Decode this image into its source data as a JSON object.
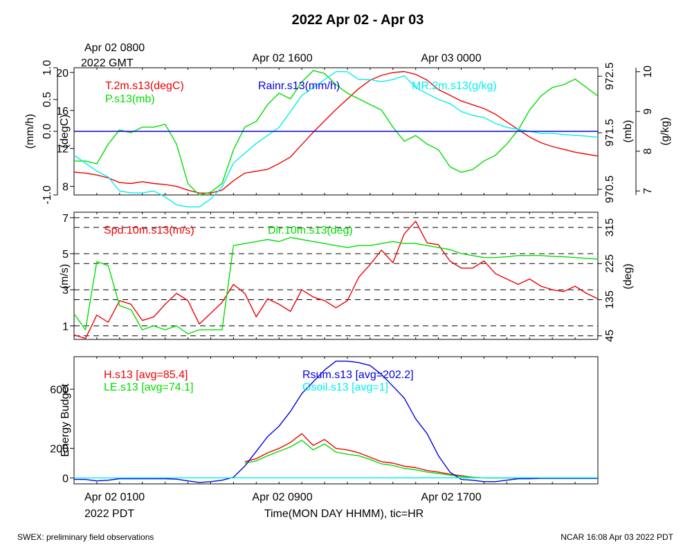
{
  "page": {
    "title": "2022 Apr 02 - Apr 03",
    "top_time_labels": {
      "first_line1": "Apr 02 0800",
      "first_line2": "2022 GMT",
      "second": "Apr 02 1600",
      "third": "Apr 03 0000"
    },
    "bottom_time_labels": {
      "first_line1": "Apr 02 0100",
      "first_line2": "2022 PDT",
      "second": "Apr 02 0900",
      "third": "Apr 02 1700"
    },
    "xlabel": "Time(MON DAY HHMM), tic=HR",
    "footer_left": "SWEX: preliminary field observations",
    "footer_right": "NCAR 16:08 Apr 03 2022 PDT"
  },
  "colors": {
    "red": "#ee0000",
    "green": "#00dd00",
    "blue": "#0000dd",
    "cyan": "#00eeee",
    "black": "#000000"
  },
  "chart_data": [
    {
      "type": "line",
      "x_hours_pdt": [
        1,
        24
      ],
      "axes": {
        "left_outer": {
          "label": "(mm/h)",
          "ylim": [
            -1.0,
            1.0
          ],
          "ticks": [
            "-1.0",
            "0.0",
            "0.5",
            "1.0"
          ]
        },
        "left_inner": {
          "label": "(degC)",
          "ylim": [
            7.1,
            20.5
          ],
          "ticks": [
            "8",
            "12",
            "16",
            "20"
          ]
        },
        "right_inner": {
          "label": "(mb)",
          "ylim": [
            970.4,
            972.65
          ],
          "ticks": [
            "970.5",
            "971.5",
            "972.5"
          ]
        },
        "right_outer": {
          "label": "(g/kg)",
          "ylim": [
            6.9,
            10.1
          ],
          "ticks": [
            "7",
            "8",
            "9",
            "10"
          ]
        }
      },
      "series": [
        {
          "name": "T.2m.s13(degC)",
          "axis": "left_inner",
          "color": "#ee0000",
          "x": [
            1,
            1.5,
            2,
            2.5,
            3,
            3.5,
            4,
            4.5,
            5,
            5.5,
            6,
            6.5,
            7,
            7.5,
            8,
            8.5,
            9,
            9.5,
            10,
            10.5,
            11,
            11.5,
            12,
            12.5,
            13,
            13.5,
            14,
            14.5,
            15,
            15.5,
            16,
            16.5,
            17,
            17.5,
            18,
            18.5,
            19,
            19.5,
            20,
            20.5,
            21,
            21.5,
            22,
            22.5,
            23,
            23.5,
            24
          ],
          "values": [
            9.5,
            9.4,
            9.2,
            8.9,
            8.4,
            8.3,
            8.5,
            8.3,
            8.2,
            8.0,
            7.6,
            7.3,
            7.3,
            7.6,
            8.6,
            9.4,
            9.6,
            9.8,
            10.4,
            11.1,
            12.4,
            13.7,
            14.9,
            16.1,
            17.2,
            18.3,
            19.2,
            19.7,
            20.0,
            20.1,
            19.8,
            19.2,
            18.2,
            17.6,
            17.0,
            16.6,
            16.2,
            15.6,
            14.8,
            14.0,
            13.2,
            12.6,
            12.2,
            11.9,
            11.6,
            11.4,
            11.2
          ]
        },
        {
          "name": "P.s13(mb)",
          "axis": "right_inner",
          "color": "#00dd00",
          "x": [
            1,
            1.5,
            2,
            2.5,
            3,
            3.5,
            4,
            4.5,
            5,
            5.5,
            6,
            6.5,
            7,
            7.5,
            8,
            8.5,
            9,
            9.5,
            10,
            10.5,
            11,
            11.5,
            12,
            12.5,
            13,
            13.5,
            14,
            14.5,
            15,
            15.5,
            16,
            16.5,
            17,
            17.5,
            18,
            18.5,
            19,
            19.5,
            20,
            20.5,
            21,
            21.5,
            22,
            22.5,
            23,
            23.5,
            24
          ],
          "values": [
            971.0,
            971.0,
            970.95,
            971.3,
            971.55,
            971.5,
            971.6,
            971.6,
            971.65,
            971.3,
            970.6,
            970.4,
            970.45,
            970.6,
            971.2,
            971.6,
            971.7,
            972.0,
            972.2,
            972.1,
            972.4,
            972.6,
            972.55,
            972.35,
            972.2,
            972.1,
            972.0,
            971.9,
            971.6,
            971.35,
            971.45,
            971.3,
            971.2,
            970.9,
            970.8,
            970.85,
            971.0,
            971.1,
            971.3,
            971.55,
            971.9,
            972.15,
            972.3,
            972.35,
            972.45,
            972.3,
            972.15
          ]
        },
        {
          "name": "MR.2m.s13(g/kg)",
          "axis": "right_outer",
          "color": "#00eeee",
          "x": [
            1,
            1.5,
            2,
            2.5,
            3,
            3.5,
            4,
            4.5,
            5,
            5.5,
            6,
            6.5,
            7,
            7.5,
            8,
            8.5,
            9,
            9.5,
            10,
            10.5,
            11,
            11.5,
            12,
            12.5,
            13,
            13.5,
            14,
            14.5,
            15,
            15.5,
            16,
            16.5,
            17,
            17.5,
            18,
            18.5,
            19,
            19.5,
            20,
            20.5,
            21,
            21.5,
            22,
            22.5,
            23,
            23.5,
            24
          ],
          "values": [
            7.9,
            7.7,
            7.5,
            7.35,
            7.0,
            6.95,
            6.95,
            7.0,
            6.85,
            6.65,
            6.6,
            6.6,
            6.8,
            7.1,
            7.7,
            7.95,
            8.2,
            8.4,
            8.6,
            9.0,
            9.4,
            9.6,
            9.8,
            10.0,
            10.0,
            9.8,
            9.8,
            9.75,
            9.8,
            9.9,
            9.6,
            9.45,
            9.3,
            9.2,
            9.0,
            8.9,
            8.85,
            8.7,
            8.6,
            8.55,
            8.5,
            8.45,
            8.45,
            8.42,
            8.4,
            8.38,
            8.35
          ]
        },
        {
          "name": "Rainr.s13(mm/h)",
          "axis": "left_outer",
          "color": "#0000dd",
          "x": [
            1,
            24
          ],
          "values": [
            0,
            0
          ]
        }
      ]
    },
    {
      "type": "line",
      "axes": {
        "left": {
          "label": "(m/s)",
          "ylim": [
            0.25,
            7.3
          ],
          "ticks": [
            "1",
            "3",
            "5",
            "7"
          ]
        },
        "right": {
          "label": "(deg)",
          "ylim": [
            36,
            353
          ],
          "ticks": [
            "45",
            "135",
            "225",
            "315"
          ]
        }
      },
      "gridlines": "dashed",
      "series": [
        {
          "name": "Spd.10m.s13(m/s)",
          "axis": "left",
          "color": "#ee0000",
          "x": [
            1,
            1.5,
            2,
            2.5,
            3,
            3.5,
            4,
            4.5,
            5,
            5.5,
            6,
            6.5,
            7,
            7.5,
            8,
            8.5,
            9,
            9.5,
            10,
            10.5,
            11,
            11.5,
            12,
            12.5,
            13,
            13.5,
            14,
            14.5,
            15,
            15.5,
            16,
            16.5,
            17,
            17.5,
            18,
            18.5,
            19,
            19.5,
            20,
            20.5,
            21,
            21.5,
            22,
            22.5,
            23,
            23.5,
            24
          ],
          "values": [
            0.5,
            0.3,
            1.6,
            1.2,
            2.4,
            2.2,
            1.3,
            1.5,
            2.2,
            2.8,
            2.4,
            1.1,
            1.7,
            2.3,
            3.3,
            2.8,
            1.5,
            2.5,
            2.2,
            1.8,
            3.0,
            2.6,
            2.4,
            2.0,
            2.4,
            3.7,
            4.4,
            5.2,
            4.5,
            6.1,
            6.8,
            5.6,
            5.5,
            4.6,
            4.2,
            4.2,
            4.6,
            3.9,
            3.6,
            3.3,
            3.6,
            3.2,
            3.0,
            2.9,
            3.2,
            2.8,
            2.5
          ]
        },
        {
          "name": "Dir.10m.s13(deg)",
          "axis": "right",
          "color": "#00dd00",
          "x": [
            1,
            1.5,
            2,
            2.5,
            3,
            3.5,
            4,
            4.5,
            5,
            5.5,
            6,
            6.5,
            7,
            7.5,
            8,
            8.5,
            9,
            9.5,
            10,
            10.5,
            11,
            11.5,
            12,
            12.5,
            13,
            13.5,
            14,
            14.5,
            15,
            15.5,
            16,
            16.5,
            17,
            17.5,
            18,
            18.5,
            19,
            19.5,
            20,
            20.5,
            21,
            21.5,
            22,
            22.5,
            23,
            23.5,
            24
          ],
          "values": [
            100,
            60,
            230,
            220,
            120,
            110,
            60,
            70,
            60,
            70,
            50,
            60,
            60,
            60,
            270,
            275,
            280,
            285,
            280,
            290,
            285,
            280,
            275,
            270,
            265,
            270,
            270,
            275,
            280,
            275,
            275,
            270,
            265,
            260,
            250,
            245,
            240,
            240,
            242,
            245,
            245,
            245,
            243,
            242,
            240,
            238,
            236
          ]
        }
      ]
    },
    {
      "type": "line",
      "axes": {
        "left": {
          "label": "Energy Budget",
          "ylim": [
            -40,
            820
          ],
          "ticks": [
            "0",
            "200",
            "600"
          ]
        }
      },
      "series": [
        {
          "name": "H.s13 [avg=85.4]",
          "color": "#ee0000",
          "x": [
            8.5,
            9,
            9.5,
            10,
            10.5,
            11,
            11.5,
            12,
            12.5,
            13,
            13.5,
            14,
            14.5,
            15,
            15.5,
            16,
            16.5,
            17,
            17.5,
            18,
            18.5,
            19,
            19.5,
            20,
            20.5,
            21,
            21.5,
            22,
            22.5,
            23,
            23.5,
            24
          ],
          "values": [
            110,
            130,
            170,
            200,
            240,
            300,
            220,
            260,
            200,
            190,
            170,
            140,
            110,
            100,
            80,
            70,
            50,
            40,
            25,
            15,
            5,
            0,
            0,
            0,
            0,
            0,
            0,
            0,
            0,
            0,
            0,
            0
          ]
        },
        {
          "name": "LE.s13 [avg=74.1]",
          "color": "#00dd00",
          "x": [
            8.5,
            9,
            9.5,
            10,
            10.5,
            11,
            11.5,
            12,
            12.5,
            13,
            13.5,
            14,
            14.5,
            15,
            15.5,
            16,
            16.5,
            17,
            17.5,
            18,
            18.5,
            19,
            19.5,
            20,
            20.5,
            21,
            21.5,
            22,
            22.5,
            23,
            23.5,
            24
          ],
          "values": [
            100,
            115,
            150,
            180,
            210,
            255,
            190,
            230,
            175,
            160,
            150,
            125,
            95,
            85,
            65,
            55,
            40,
            30,
            20,
            10,
            5,
            0,
            0,
            0,
            0,
            0,
            0,
            0,
            0,
            0,
            0,
            0
          ]
        },
        {
          "name": "Rsum.s13 [avg=202.2]",
          "color": "#0000dd",
          "x": [
            1,
            1.5,
            2,
            2.5,
            3,
            3.5,
            4,
            4.5,
            5,
            5.5,
            6,
            6.5,
            7,
            7.5,
            8,
            8.5,
            9,
            9.5,
            10,
            10.5,
            11,
            11.5,
            12,
            12.5,
            13,
            13.5,
            14,
            14.5,
            15,
            15.5,
            16,
            16.5,
            17,
            17.5,
            18,
            18.5,
            19,
            19.5,
            20,
            20.5,
            21,
            21.5,
            22,
            22.5,
            23,
            23.5,
            24
          ],
          "values": [
            -10,
            -10,
            -20,
            -15,
            -5,
            -5,
            -5,
            -5,
            -5,
            -8,
            -20,
            -30,
            -25,
            -15,
            5,
            80,
            180,
            280,
            350,
            450,
            570,
            650,
            730,
            790,
            790,
            780,
            760,
            700,
            620,
            540,
            400,
            300,
            150,
            40,
            -10,
            -15,
            -25,
            -25,
            -15,
            -5,
            -5,
            -3,
            -3,
            -3,
            -3,
            -3,
            -3
          ]
        },
        {
          "name": "Gsoil.s13 [avg=1]",
          "color": "#00eeee",
          "x": [
            1,
            24
          ],
          "values": [
            0,
            1
          ]
        }
      ]
    }
  ]
}
